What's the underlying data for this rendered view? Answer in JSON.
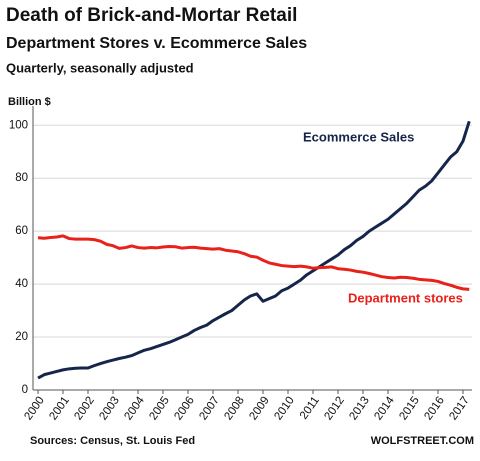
{
  "chart_data": {
    "type": "line",
    "title": "Death of Brick-and-Mortar Retail",
    "subtitle": "Department Stores v. Ecommerce Sales",
    "note": "Quarterly, seasonally adjusted",
    "y_label": "Billion $",
    "source": "Sources: Census, St. Louis Fed",
    "credit": "WOLFSTREET.COM",
    "categories": [
      "2000",
      null,
      null,
      null,
      "2001",
      null,
      null,
      null,
      "2002",
      null,
      null,
      null,
      "2003",
      null,
      null,
      null,
      "2004",
      null,
      null,
      null,
      "2005",
      null,
      null,
      null,
      "2006",
      null,
      null,
      null,
      "2007",
      null,
      null,
      null,
      "2008",
      null,
      null,
      null,
      "2009",
      null,
      null,
      null,
      "2010",
      null,
      null,
      null,
      "2011",
      null,
      null,
      null,
      "2012",
      null,
      null,
      null,
      "2013",
      null,
      null,
      null,
      "2014",
      null,
      null,
      null,
      "2015",
      null,
      null,
      null,
      "2016",
      null,
      null,
      null,
      "2017",
      null
    ],
    "series": [
      {
        "name": "Ecommerce Sales",
        "color": "#16264a",
        "values": [
          4.5,
          5.8,
          6.4,
          7.0,
          7.6,
          8.0,
          8.2,
          8.3,
          8.3,
          9.2,
          10.0,
          10.7,
          11.3,
          11.9,
          12.4,
          13.0,
          14.0,
          15.0,
          15.6,
          16.4,
          17.2,
          18.0,
          19.0,
          20.0,
          21.0,
          22.5,
          23.6,
          24.5,
          26.2,
          27.5,
          28.8,
          30.0,
          32.0,
          34.0,
          35.5,
          36.3,
          33.5,
          34.5,
          35.5,
          37.5,
          38.5,
          40.0,
          41.5,
          43.5,
          45.0,
          46.5,
          48.0,
          49.5,
          51.0,
          53.0,
          54.5,
          56.5,
          58.0,
          60.0,
          61.5,
          63.0,
          64.5,
          66.5,
          68.5,
          70.5,
          73.0,
          75.5,
          77.0,
          79.0,
          82.0,
          85.0,
          88.0,
          90.0,
          94.0,
          101.5
        ]
      },
      {
        "name": "Department stores",
        "color": "#e8211b",
        "values": [
          57.5,
          57.3,
          57.6,
          57.8,
          58.2,
          57.2,
          57.0,
          57.0,
          57.0,
          56.8,
          56.2,
          55.0,
          54.5,
          53.5,
          53.8,
          54.4,
          53.8,
          53.6,
          53.8,
          53.7,
          54.0,
          54.2,
          54.1,
          53.6,
          53.8,
          53.9,
          53.6,
          53.4,
          53.2,
          53.4,
          52.8,
          52.5,
          52.2,
          51.5,
          50.5,
          50.2,
          49.0,
          48.0,
          47.5,
          47.0,
          46.8,
          46.6,
          46.8,
          46.5,
          46.0,
          46.2,
          46.3,
          46.5,
          45.8,
          45.6,
          45.3,
          44.8,
          44.5,
          44.0,
          43.4,
          42.8,
          42.5,
          42.3,
          42.6,
          42.5,
          42.2,
          41.8,
          41.6,
          41.4,
          41.0,
          40.2,
          39.6,
          38.8,
          38.2,
          38.0
        ]
      }
    ],
    "ylim": [
      0,
      105
    ],
    "yticks": [
      0,
      20,
      40,
      60,
      80,
      100
    ],
    "grid": true
  }
}
